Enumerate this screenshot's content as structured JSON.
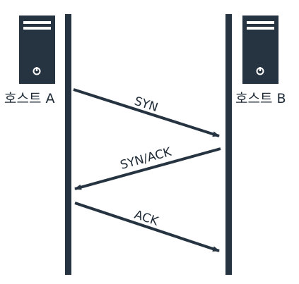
{
  "colors": {
    "ink": "#263340",
    "server_body": "#263340",
    "server_detail": "#ffffff"
  },
  "hosts": {
    "a": {
      "label": "호스트 A",
      "icon": "server-icon"
    },
    "b": {
      "label": "호스트 B",
      "icon": "server-icon"
    }
  },
  "messages": [
    {
      "label": "SYN",
      "direction": "A→B"
    },
    {
      "label": "SYN/ACK",
      "direction": "B→A"
    },
    {
      "label": "ACK",
      "direction": "A→B"
    }
  ]
}
